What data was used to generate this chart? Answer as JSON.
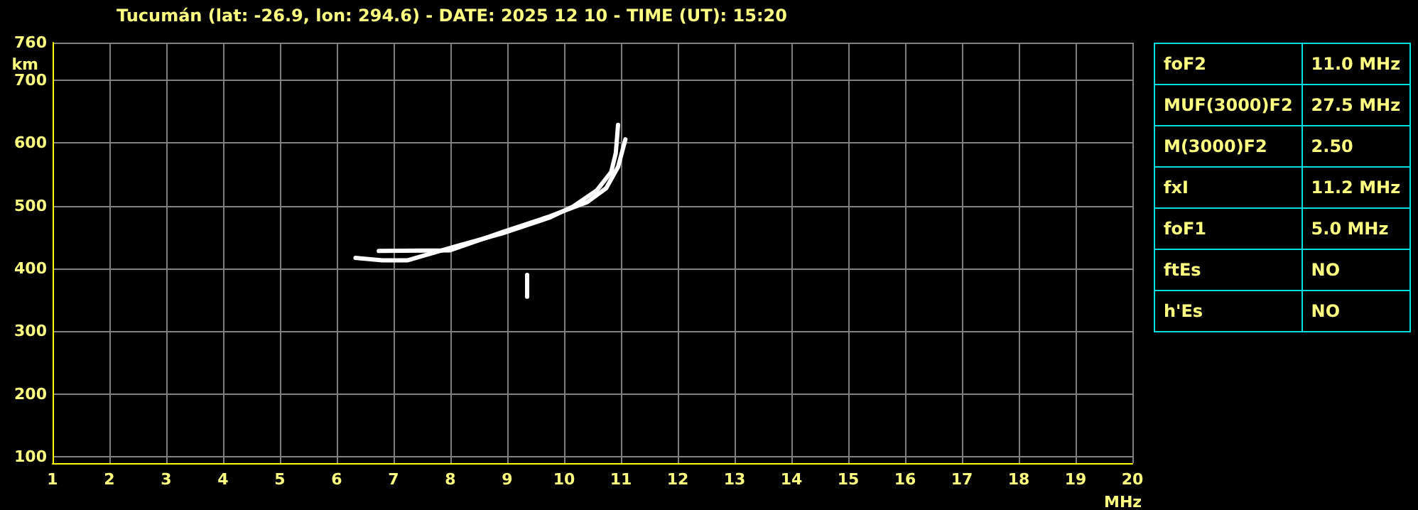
{
  "chart_data": [
    {
      "type": "line",
      "title": "Tucumán (lat: -26.9, lon: 294.6) - DATE: 2025 12 10 - TIME (UT): 15:20",
      "xlabel": "MHz",
      "ylabel": "km",
      "xlim": [
        1,
        20
      ],
      "xticks": [
        1,
        2,
        3,
        4,
        5,
        6,
        7,
        8,
        9,
        10,
        11,
        12,
        13,
        14,
        15,
        16,
        17,
        18,
        19,
        20
      ],
      "ylim": [
        90,
        760
      ],
      "yticks": [
        100,
        200,
        300,
        400,
        500,
        600,
        700,
        760
      ],
      "grid": true,
      "marker": "none",
      "line_style": "solid",
      "series": [
        {
          "color": "#ffffff",
          "x": [
            6.33,
            6.8,
            7.24,
            8.08,
            8.91,
            9.74,
            10.16,
            10.58,
            10.83,
            10.91,
            10.95
          ],
          "values": [
            417,
            413,
            413,
            435,
            456,
            481,
            499,
            525,
            554,
            584,
            629
          ]
        },
        {
          "color": "#ffffff",
          "x": [
            6.74,
            7.99,
            8.91,
            9.74,
            10.41,
            10.74,
            10.95,
            11.08
          ],
          "values": [
            428,
            429,
            458,
            483,
            506,
            528,
            562,
            606
          ]
        },
        {
          "color": "#ffffff",
          "x": [
            9.35,
            9.35
          ],
          "values": [
            355,
            390
          ]
        }
      ]
    },
    {
      "type": "other",
      "annotations": [
        "foF2",
        "11.0 MHz",
        "MUF(3000)F2",
        "27.5 MHz",
        "M(3000)F2",
        "2.50",
        "fxI",
        "11.2 MHz",
        "foF1",
        "5.0 MHz",
        "ftEs",
        "NO",
        "h'Es",
        "NO"
      ]
    }
  ]
}
